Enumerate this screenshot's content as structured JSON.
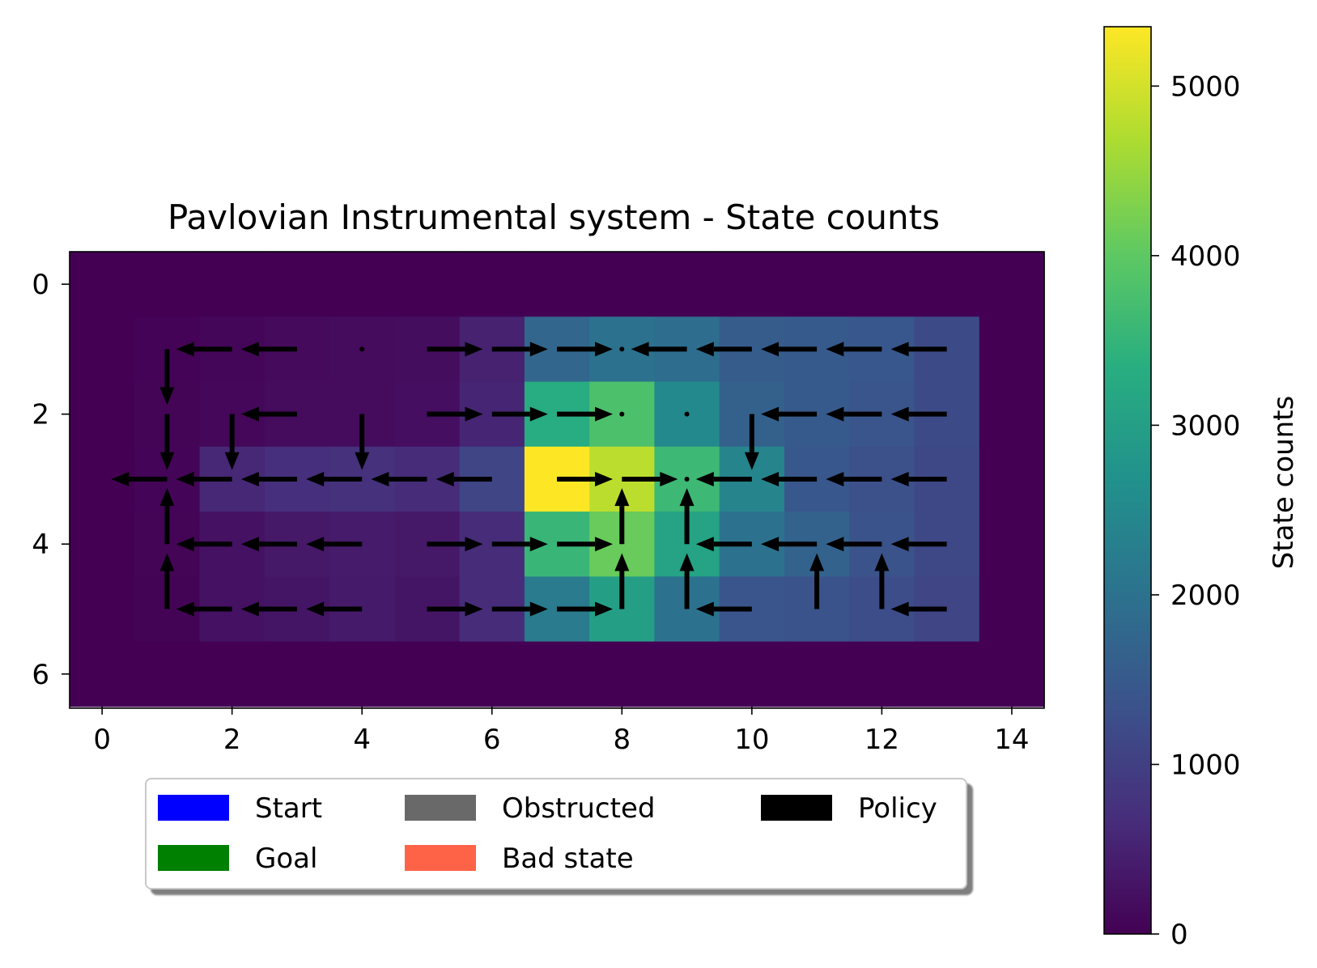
{
  "chart_data": {
    "type": "heatmap",
    "title": "Pavlovian Instrumental system - State counts",
    "xlabel": "",
    "ylabel": "",
    "xlim": [
      -0.5,
      14.5
    ],
    "ylim": [
      6.5,
      -0.5
    ],
    "x_ticks": [
      0,
      2,
      4,
      6,
      8,
      10,
      12,
      14
    ],
    "y_ticks": [
      0,
      2,
      4,
      6
    ],
    "grid": false,
    "colormap": "viridis",
    "colorbar": {
      "label": "State counts",
      "min": 0,
      "max": 5350,
      "ticks": [
        0,
        1000,
        2000,
        3000,
        4000,
        5000
      ]
    },
    "counts": [
      [
        0,
        0,
        0,
        0,
        0,
        0,
        0,
        0,
        0,
        0,
        0,
        0,
        0,
        0,
        0
      ],
      [
        0,
        30,
        80,
        130,
        150,
        180,
        500,
        1750,
        2000,
        1900,
        1550,
        1500,
        1450,
        1200,
        0
      ],
      [
        0,
        60,
        90,
        150,
        170,
        200,
        550,
        3300,
        3800,
        2500,
        1650,
        1500,
        1400,
        1200,
        0
      ],
      [
        0,
        50,
        600,
        700,
        750,
        650,
        1100,
        5350,
        4800,
        3600,
        2400,
        1450,
        1300,
        1150,
        0
      ],
      [
        0,
        60,
        250,
        350,
        400,
        350,
        650,
        3550,
        4100,
        3100,
        2000,
        1700,
        1350,
        1150,
        0
      ],
      [
        0,
        40,
        250,
        300,
        380,
        300,
        650,
        2200,
        3000,
        2000,
        1400,
        1350,
        1250,
        1100,
        0
      ],
      [
        0,
        0,
        0,
        0,
        0,
        0,
        0,
        0,
        0,
        0,
        0,
        0,
        0,
        0,
        0
      ]
    ],
    "policy": [
      [
        null,
        null,
        null,
        null,
        null,
        null,
        null,
        null,
        null,
        null,
        null,
        null,
        null,
        null,
        null
      ],
      [
        null,
        "down",
        "left",
        "left",
        "stay",
        "right",
        "right",
        "right",
        "stay",
        "left",
        "left",
        "left",
        "left",
        "left",
        null
      ],
      [
        null,
        "down",
        "down",
        "left",
        "down",
        "right",
        "right",
        "right",
        "stay",
        "stay",
        "down",
        "left",
        "left",
        "left",
        null
      ],
      [
        null,
        "left",
        "left",
        "left",
        "left",
        "left",
        "left",
        "right",
        "right",
        "stay",
        "left",
        "left",
        "left",
        "left",
        null
      ],
      [
        null,
        "up",
        "left",
        "left",
        "left",
        "right",
        "right",
        "right",
        "up",
        "up",
        "left",
        "left",
        "left",
        "left",
        null
      ],
      [
        null,
        "up",
        "left",
        "left",
        "left",
        "right",
        "right",
        "right",
        "up",
        "up",
        "left",
        "up",
        "up",
        "left",
        null
      ],
      [
        null,
        null,
        null,
        null,
        null,
        null,
        null,
        null,
        null,
        null,
        null,
        null,
        null,
        null,
        null
      ]
    ],
    "legend": {
      "placement": "lower-center-outside",
      "entries": [
        {
          "label": "Start",
          "color": "#0000ff"
        },
        {
          "label": "Obstructed",
          "color": "#696969"
        },
        {
          "label": "Policy",
          "color": "#000000"
        },
        {
          "label": "Goal",
          "color": "#008000"
        },
        {
          "label": "Bad state",
          "color": "#ff6347"
        }
      ]
    }
  }
}
